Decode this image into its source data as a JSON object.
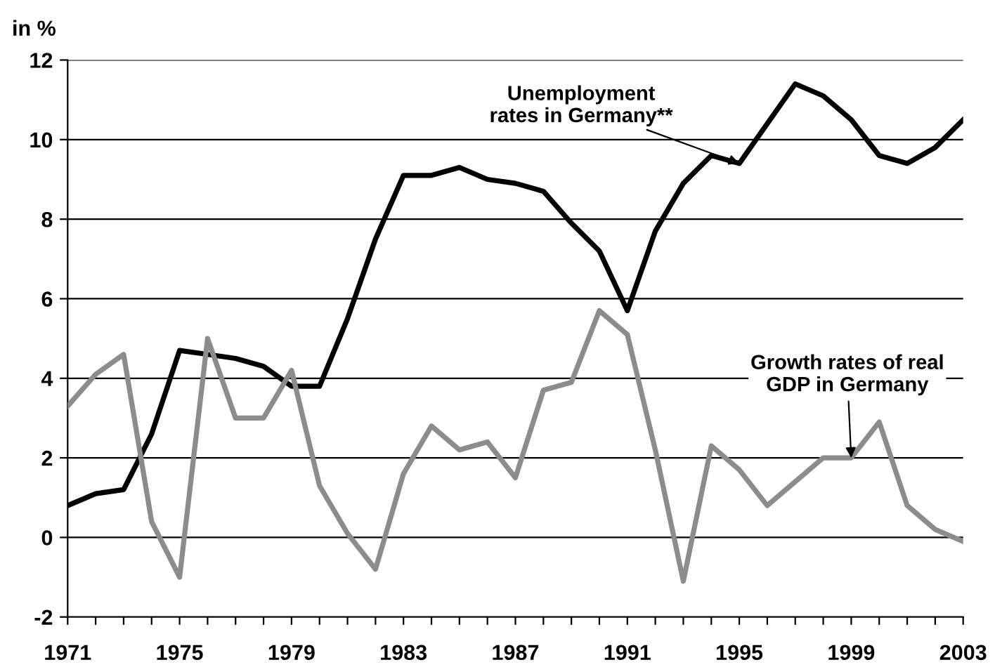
{
  "chart_data": {
    "type": "line",
    "ylabel": "in %",
    "x": [
      1971,
      1972,
      1973,
      1974,
      1975,
      1976,
      1977,
      1978,
      1979,
      1980,
      1981,
      1982,
      1983,
      1984,
      1985,
      1986,
      1987,
      1988,
      1989,
      1990,
      1991,
      1992,
      1993,
      1994,
      1995,
      1996,
      1997,
      1998,
      1999,
      2000,
      2001,
      2002,
      2003
    ],
    "series": [
      {
        "color": "#000000",
        "values": [
          0.8,
          1.1,
          1.2,
          2.6,
          4.7,
          4.6,
          4.5,
          4.3,
          3.8,
          3.8,
          5.5,
          7.5,
          9.1,
          9.1,
          9.3,
          9.0,
          8.9,
          8.7,
          7.9,
          7.2,
          5.7,
          7.7,
          8.9,
          9.6,
          9.4,
          10.4,
          11.4,
          11.1,
          10.5,
          9.6,
          9.4,
          9.8,
          10.5
        ]
      },
      {
        "color": "#8c8c8c",
        "values": [
          3.3,
          4.1,
          4.6,
          0.4,
          -1.0,
          5.0,
          3.0,
          3.0,
          4.2,
          1.3,
          0.1,
          -0.8,
          1.6,
          2.8,
          2.2,
          2.4,
          1.5,
          3.7,
          3.9,
          5.7,
          5.1,
          2.2,
          -1.1,
          2.3,
          1.7,
          0.8,
          1.4,
          2.0,
          2.0,
          2.9,
          0.8,
          0.2,
          -0.1
        ]
      }
    ],
    "xlim": [
      1971,
      2003
    ],
    "xticks": [
      1971,
      {
        "value": 1972,
        "label": null
      },
      {
        "value": 1973,
        "label": null
      },
      {
        "value": 1974,
        "label": null
      },
      1975,
      {
        "value": 1976,
        "label": null
      },
      {
        "value": 1977,
        "label": null
      },
      {
        "value": 1978,
        "label": null
      },
      1979,
      {
        "value": 1980,
        "label": null
      },
      {
        "value": 1981,
        "label": null
      },
      {
        "value": 1982,
        "label": null
      },
      1983,
      {
        "value": 1984,
        "label": null
      },
      {
        "value": 1985,
        "label": null
      },
      {
        "value": 1986,
        "label": null
      },
      1987,
      {
        "value": 1988,
        "label": null
      },
      {
        "value": 1989,
        "label": null
      },
      {
        "value": 1990,
        "label": null
      },
      1991,
      {
        "value": 1992,
        "label": null
      },
      {
        "value": 1993,
        "label": null
      },
      {
        "value": 1994,
        "label": null
      },
      1995,
      {
        "value": 1996,
        "label": null
      },
      {
        "value": 1997,
        "label": null
      },
      {
        "value": 1998,
        "label": null
      },
      1999,
      {
        "value": 2000,
        "label": null
      },
      {
        "value": 2001,
        "label": null
      },
      {
        "value": 2002,
        "label": null
      },
      2003
    ],
    "ylim": [
      -2,
      12
    ],
    "yticks": [
      -2,
      0,
      2,
      4,
      6,
      8,
      10,
      12
    ],
    "grid": "y",
    "legend": false,
    "line_style": "solid",
    "marker": "none",
    "annotations": [
      {
        "text": "Unemployment\nrates in Germany**",
        "x": 1995,
        "y": 9.4
      },
      {
        "text": "Growth rates of real\nGDP in Germany",
        "x": 1999,
        "y": 2.0
      }
    ]
  }
}
